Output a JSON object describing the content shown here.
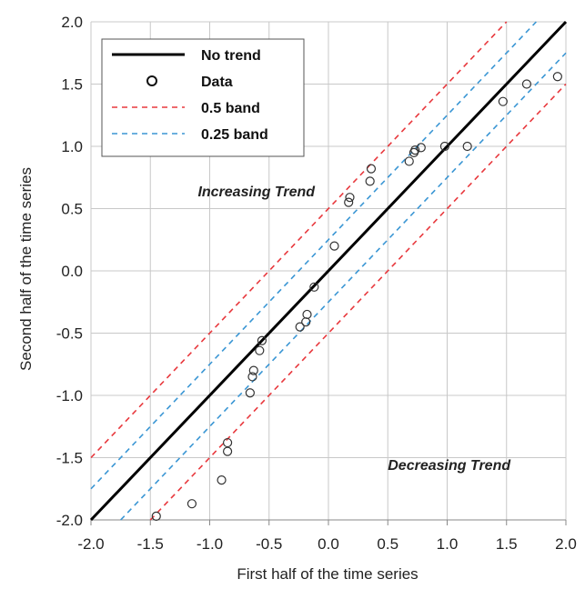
{
  "chart_data": {
    "type": "scatter",
    "xlabel": "First half of the time series",
    "ylabel": "Second half of the time series",
    "xlim": [
      -2.0,
      2.0
    ],
    "ylim": [
      -2.0,
      2.0
    ],
    "xticks": [
      -2.0,
      -1.5,
      -1.0,
      -0.5,
      0.0,
      0.5,
      1.0,
      1.5,
      2.0
    ],
    "yticks": [
      -2.0,
      -1.5,
      -1.0,
      -0.5,
      0.0,
      0.5,
      1.0,
      1.5,
      2.0
    ],
    "xtick_labels": [
      "-2.0",
      "-1.5",
      "-1.0",
      "-0.5",
      "0.0",
      "0.5",
      "1.0",
      "1.5",
      "2.0"
    ],
    "ytick_labels": [
      "-2.0",
      "-1.5",
      "-1.0",
      "-0.5",
      "0.0",
      "0.5",
      "1.0",
      "1.5",
      "2.0"
    ],
    "grid": true,
    "legend_position": "top-left",
    "legend": [
      {
        "label": "No trend",
        "style": "line",
        "color": "#000000"
      },
      {
        "label": "Data",
        "style": "marker",
        "color": "#333333"
      },
      {
        "label": "0.5 band",
        "style": "dashed",
        "color": "#e8383d"
      },
      {
        "label": "0.25 band",
        "style": "dashed",
        "color": "#3a96d4"
      }
    ],
    "annotations": [
      {
        "text": "Increasing Trend",
        "x": -1.1,
        "y": 0.6
      },
      {
        "text": "Decreasing Trend",
        "x": 0.5,
        "y": -1.6
      }
    ],
    "lines": [
      {
        "name": "No trend",
        "offset": 0.0,
        "color": "#000000",
        "dash": "solid"
      },
      {
        "name": "0.5 band",
        "offset": 0.5,
        "color": "#e8383d",
        "dash": "dashed"
      },
      {
        "name": "0.5 band",
        "offset": -0.5,
        "color": "#e8383d",
        "dash": "dashed"
      },
      {
        "name": "0.25 band",
        "offset": 0.25,
        "color": "#3a96d4",
        "dash": "dashed"
      },
      {
        "name": "0.25 band",
        "offset": -0.25,
        "color": "#3a96d4",
        "dash": "dashed"
      }
    ],
    "points": [
      {
        "x": -1.45,
        "y": -1.97
      },
      {
        "x": -1.15,
        "y": -1.87
      },
      {
        "x": -0.9,
        "y": -1.68
      },
      {
        "x": -0.85,
        "y": -1.45
      },
      {
        "x": -0.85,
        "y": -1.38
      },
      {
        "x": -0.66,
        "y": -0.98
      },
      {
        "x": -0.64,
        "y": -0.85
      },
      {
        "x": -0.63,
        "y": -0.8
      },
      {
        "x": -0.58,
        "y": -0.64
      },
      {
        "x": -0.56,
        "y": -0.56
      },
      {
        "x": -0.24,
        "y": -0.45
      },
      {
        "x": -0.19,
        "y": -0.41
      },
      {
        "x": -0.18,
        "y": -0.35
      },
      {
        "x": -0.12,
        "y": -0.13
      },
      {
        "x": 0.05,
        "y": 0.2
      },
      {
        "x": 0.17,
        "y": 0.55
      },
      {
        "x": 0.18,
        "y": 0.59
      },
      {
        "x": 0.35,
        "y": 0.72
      },
      {
        "x": 0.36,
        "y": 0.82
      },
      {
        "x": 0.68,
        "y": 0.88
      },
      {
        "x": 0.72,
        "y": 0.95
      },
      {
        "x": 0.73,
        "y": 0.97
      },
      {
        "x": 0.78,
        "y": 0.99
      },
      {
        "x": 0.98,
        "y": 1.0
      },
      {
        "x": 1.17,
        "y": 1.0
      },
      {
        "x": 1.47,
        "y": 1.36
      },
      {
        "x": 1.67,
        "y": 1.5
      },
      {
        "x": 1.93,
        "y": 1.56
      }
    ],
    "colors": {
      "grid": "#c8c8c8",
      "axes": "#888888",
      "marker": "#333333"
    }
  }
}
